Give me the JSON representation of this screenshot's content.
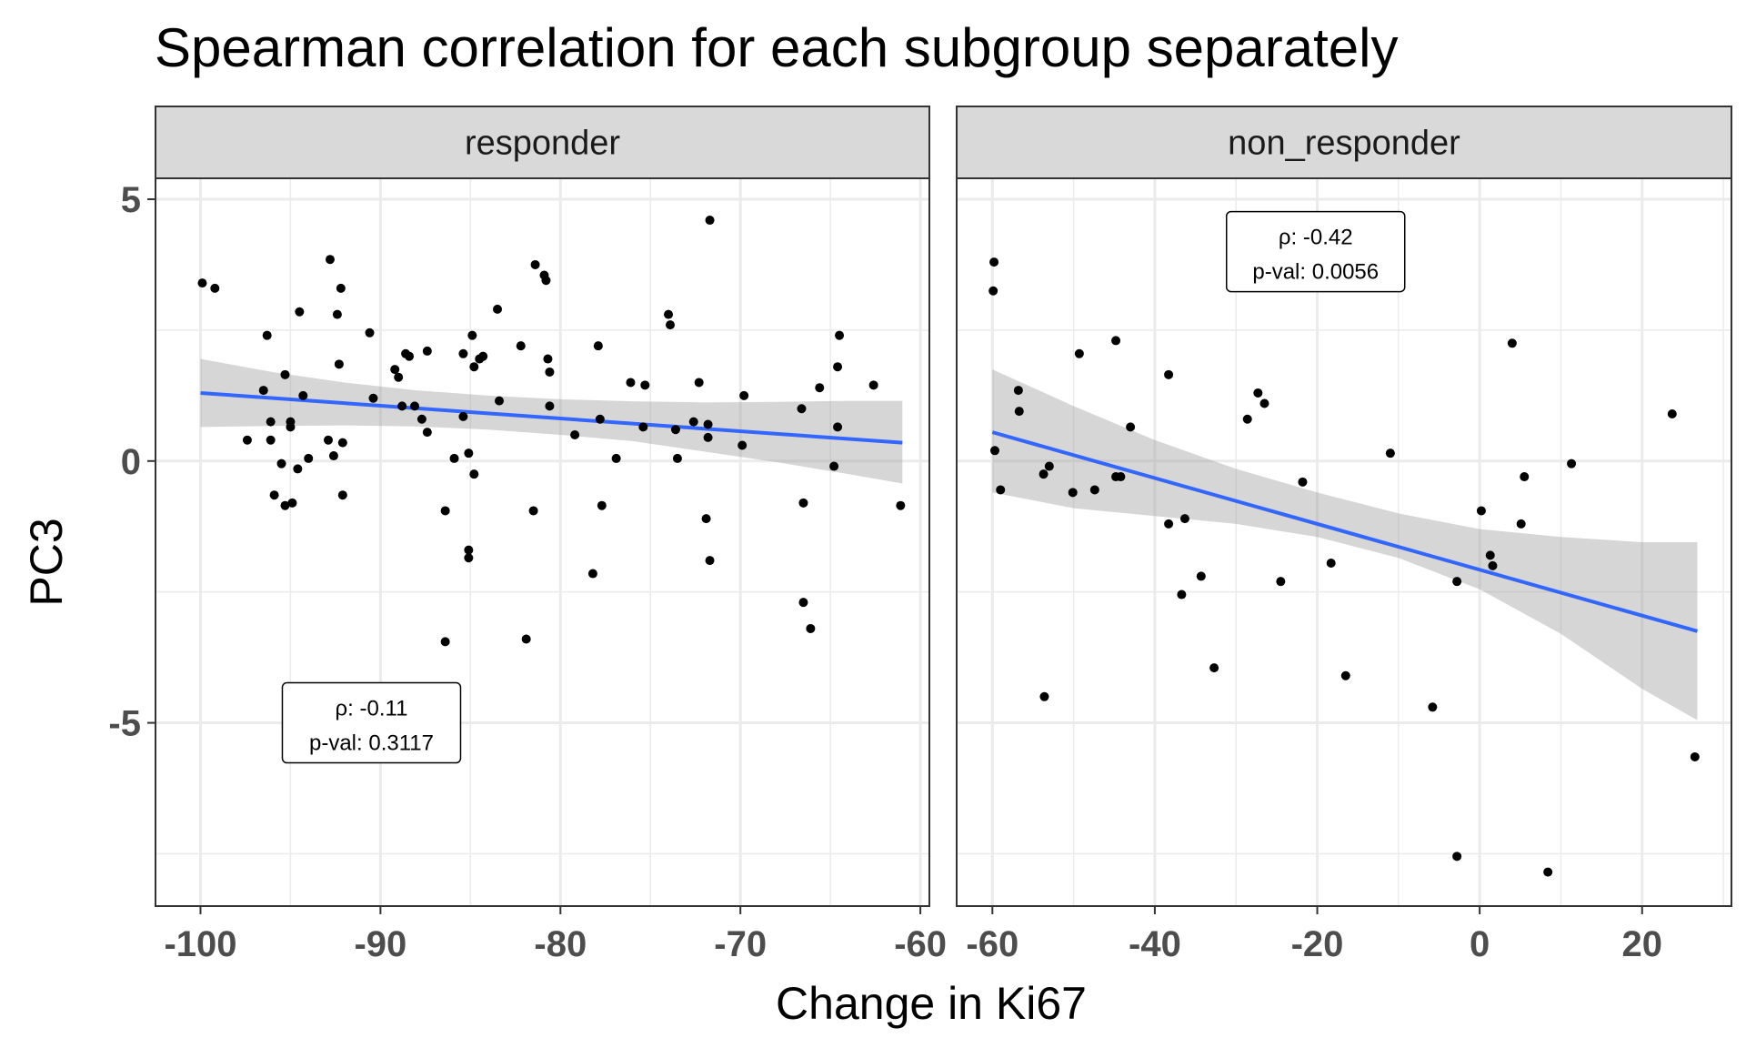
{
  "chart_data": {
    "type": "scatter",
    "title": "Spearman correlation for each subgroup separately",
    "xlabel": "Change in Ki67",
    "ylabel": "PC3",
    "ylim": [
      -8.5,
      5.4
    ],
    "y_ticks": [
      {
        "value": 5,
        "label": "5"
      },
      {
        "value": 0,
        "label": "0"
      },
      {
        "value": -5,
        "label": "-5"
      }
    ],
    "grid": true,
    "colors": {
      "points": "#000000",
      "fit_line": "#3366FF",
      "ribbon": "#999999",
      "strip_fill": "#D9D9D9",
      "grid": "#EBEBEB"
    },
    "panels": [
      {
        "strip_label": "responder",
        "xlim": [
          -102.5,
          -59.5
        ],
        "x_ticks": [
          {
            "value": -100,
            "label": "-100"
          },
          {
            "value": -90,
            "label": "-90"
          },
          {
            "value": -80,
            "label": "-80"
          },
          {
            "value": -70,
            "label": "-70"
          },
          {
            "value": -60,
            "label": "-60"
          }
        ],
        "annotation": {
          "rho": "ρ: -0.11",
          "pval": "p-val: 0.3117",
          "x": -90.5,
          "y": -5.0
        },
        "fit": {
          "x": [
            -100,
            -61
          ],
          "y": [
            1.3,
            0.35
          ]
        },
        "ribbon": {
          "x": [
            -100,
            -96,
            -92,
            -88,
            -84,
            -80,
            -76,
            -72,
            -68,
            -64,
            -61
          ],
          "upper": [
            1.95,
            1.7,
            1.5,
            1.35,
            1.25,
            1.18,
            1.14,
            1.12,
            1.13,
            1.15,
            1.15
          ],
          "lower": [
            0.65,
            0.67,
            0.68,
            0.66,
            0.6,
            0.5,
            0.38,
            0.18,
            -0.02,
            -0.25,
            -0.43
          ]
        },
        "points": [
          {
            "x": -99.9,
            "y": 3.4
          },
          {
            "x": -99.2,
            "y": 3.3
          },
          {
            "x": -97.4,
            "y": 0.4
          },
          {
            "x": -96.5,
            "y": 1.35
          },
          {
            "x": -96.3,
            "y": 2.4
          },
          {
            "x": -96.1,
            "y": 0.75
          },
          {
            "x": -96.1,
            "y": 0.4
          },
          {
            "x": -95.9,
            "y": -0.65
          },
          {
            "x": -95.5,
            "y": -0.05
          },
          {
            "x": -95.3,
            "y": 1.65
          },
          {
            "x": -95.3,
            "y": -0.85
          },
          {
            "x": -95.0,
            "y": 0.65
          },
          {
            "x": -95.0,
            "y": 0.75
          },
          {
            "x": -94.9,
            "y": -0.8
          },
          {
            "x": -94.6,
            "y": -0.15
          },
          {
            "x": -94.5,
            "y": 2.85
          },
          {
            "x": -94.3,
            "y": 1.25
          },
          {
            "x": -94.0,
            "y": 0.05
          },
          {
            "x": -92.9,
            "y": 0.4
          },
          {
            "x": -92.8,
            "y": 3.85
          },
          {
            "x": -92.6,
            "y": 0.1
          },
          {
            "x": -92.4,
            "y": 2.8
          },
          {
            "x": -92.3,
            "y": 1.85
          },
          {
            "x": -92.2,
            "y": 3.3
          },
          {
            "x": -92.1,
            "y": 0.35
          },
          {
            "x": -92.1,
            "y": -0.65
          },
          {
            "x": -90.6,
            "y": 2.45
          },
          {
            "x": -90.4,
            "y": 1.2
          },
          {
            "x": -89.2,
            "y": 1.75
          },
          {
            "x": -89.0,
            "y": 1.6
          },
          {
            "x": -88.8,
            "y": 1.05
          },
          {
            "x": -88.6,
            "y": 2.05
          },
          {
            "x": -88.4,
            "y": 2.0
          },
          {
            "x": -88.1,
            "y": 1.05
          },
          {
            "x": -87.7,
            "y": 0.8
          },
          {
            "x": -87.4,
            "y": 0.55
          },
          {
            "x": -87.4,
            "y": 2.1
          },
          {
            "x": -86.4,
            "y": -0.95
          },
          {
            "x": -86.4,
            "y": -3.45
          },
          {
            "x": -85.9,
            "y": 0.05
          },
          {
            "x": -85.4,
            "y": 2.05
          },
          {
            "x": -85.4,
            "y": 0.85
          },
          {
            "x": -85.1,
            "y": 0.15
          },
          {
            "x": -85.1,
            "y": -1.7
          },
          {
            "x": -85.1,
            "y": -1.85
          },
          {
            "x": -84.9,
            "y": 2.4
          },
          {
            "x": -84.8,
            "y": -0.25
          },
          {
            "x": -84.8,
            "y": 1.8
          },
          {
            "x": -84.5,
            "y": 1.95
          },
          {
            "x": -84.3,
            "y": 2.0
          },
          {
            "x": -83.5,
            "y": 2.9
          },
          {
            "x": -83.4,
            "y": 1.15
          },
          {
            "x": -82.2,
            "y": 2.2
          },
          {
            "x": -81.9,
            "y": -3.4
          },
          {
            "x": -81.5,
            "y": -0.95
          },
          {
            "x": -81.4,
            "y": 3.75
          },
          {
            "x": -80.9,
            "y": 3.55
          },
          {
            "x": -80.8,
            "y": 3.45
          },
          {
            "x": -80.7,
            "y": 1.95
          },
          {
            "x": -80.6,
            "y": 1.7
          },
          {
            "x": -80.6,
            "y": 1.05
          },
          {
            "x": -79.2,
            "y": 0.5
          },
          {
            "x": -78.2,
            "y": -2.15
          },
          {
            "x": -77.9,
            "y": 2.2
          },
          {
            "x": -77.8,
            "y": 0.8
          },
          {
            "x": -77.7,
            "y": -0.85
          },
          {
            "x": -76.9,
            "y": 0.05
          },
          {
            "x": -76.1,
            "y": 1.5
          },
          {
            "x": -75.4,
            "y": 0.65
          },
          {
            "x": -75.3,
            "y": 1.45
          },
          {
            "x": -74.0,
            "y": 2.8
          },
          {
            "x": -73.9,
            "y": 2.6
          },
          {
            "x": -73.6,
            "y": 0.6
          },
          {
            "x": -73.5,
            "y": 0.05
          },
          {
            "x": -72.6,
            "y": 0.75
          },
          {
            "x": -72.3,
            "y": 1.5
          },
          {
            "x": -71.9,
            "y": -1.1
          },
          {
            "x": -71.8,
            "y": 0.45
          },
          {
            "x": -71.8,
            "y": 0.7
          },
          {
            "x": -71.7,
            "y": 4.6
          },
          {
            "x": -71.7,
            "y": -1.9
          },
          {
            "x": -69.9,
            "y": 0.3
          },
          {
            "x": -69.8,
            "y": 1.25
          },
          {
            "x": -66.6,
            "y": 1.0
          },
          {
            "x": -66.5,
            "y": -0.8
          },
          {
            "x": -66.5,
            "y": -2.7
          },
          {
            "x": -66.1,
            "y": -3.2
          },
          {
            "x": -65.6,
            "y": 1.4
          },
          {
            "x": -64.8,
            "y": -0.1
          },
          {
            "x": -64.6,
            "y": 0.65
          },
          {
            "x": -64.6,
            "y": 1.8
          },
          {
            "x": -64.5,
            "y": 2.4
          },
          {
            "x": -62.6,
            "y": 1.45
          },
          {
            "x": -61.1,
            "y": -0.85
          }
        ]
      },
      {
        "strip_label": "non_responder",
        "xlim": [
          -64.4,
          31.0
        ],
        "x_ticks": [
          {
            "value": -60,
            "label": "-60"
          },
          {
            "value": -40,
            "label": "-40"
          },
          {
            "value": -20,
            "label": "-20"
          },
          {
            "value": 0,
            "label": "0"
          },
          {
            "value": 20,
            "label": "20"
          }
        ],
        "annotation": {
          "rho": "ρ: -0.42",
          "pval": "p-val: 0.0056",
          "x": -20.2,
          "y": 4.0
        },
        "fit": {
          "x": [
            -60,
            26.8
          ],
          "y": [
            0.55,
            -3.25
          ]
        },
        "ribbon": {
          "x": [
            -60,
            -50,
            -40,
            -30,
            -20,
            -10,
            0,
            10,
            20,
            26.8
          ],
          "upper": [
            1.75,
            1.05,
            0.4,
            -0.15,
            -0.6,
            -1.0,
            -1.3,
            -1.45,
            -1.55,
            -1.55
          ],
          "lower": [
            -0.6,
            -0.9,
            -1.05,
            -1.2,
            -1.45,
            -1.85,
            -2.45,
            -3.3,
            -4.35,
            -4.95
          ]
        },
        "points": [
          {
            "x": -59.8,
            "y": 3.8
          },
          {
            "x": -59.9,
            "y": 3.25
          },
          {
            "x": -59.7,
            "y": 0.2
          },
          {
            "x": -59.0,
            "y": -0.55
          },
          {
            "x": -56.8,
            "y": 1.35
          },
          {
            "x": -56.7,
            "y": 0.95
          },
          {
            "x": -53.7,
            "y": -0.25
          },
          {
            "x": -53.6,
            "y": -4.5
          },
          {
            "x": -53.0,
            "y": -0.1
          },
          {
            "x": -50.1,
            "y": -0.6
          },
          {
            "x": -49.3,
            "y": 2.05
          },
          {
            "x": -47.4,
            "y": -0.55
          },
          {
            "x": -44.8,
            "y": -0.3
          },
          {
            "x": -44.8,
            "y": 2.3
          },
          {
            "x": -44.2,
            "y": -0.3
          },
          {
            "x": -43.0,
            "y": 0.65
          },
          {
            "x": -38.3,
            "y": 1.65
          },
          {
            "x": -38.3,
            "y": -1.2
          },
          {
            "x": -36.7,
            "y": -2.55
          },
          {
            "x": -36.3,
            "y": -1.1
          },
          {
            "x": -34.3,
            "y": -2.2
          },
          {
            "x": -32.7,
            "y": -3.95
          },
          {
            "x": -28.6,
            "y": 0.8
          },
          {
            "x": -27.3,
            "y": 1.3
          },
          {
            "x": -26.5,
            "y": 1.1
          },
          {
            "x": -24.5,
            "y": -2.3
          },
          {
            "x": -21.8,
            "y": -0.4
          },
          {
            "x": -18.3,
            "y": -1.95
          },
          {
            "x": -16.5,
            "y": -4.1
          },
          {
            "x": -11.0,
            "y": 0.15
          },
          {
            "x": -5.8,
            "y": -4.7
          },
          {
            "x": -2.8,
            "y": -2.3
          },
          {
            "x": -2.8,
            "y": -7.55
          },
          {
            "x": 0.2,
            "y": -0.95
          },
          {
            "x": 1.3,
            "y": -1.8
          },
          {
            "x": 1.6,
            "y": -2.0
          },
          {
            "x": 4.0,
            "y": 2.25
          },
          {
            "x": 5.1,
            "y": -1.2
          },
          {
            "x": 5.5,
            "y": -0.3
          },
          {
            "x": 8.4,
            "y": -7.85
          },
          {
            "x": 11.3,
            "y": -0.05
          },
          {
            "x": 23.7,
            "y": 0.9
          },
          {
            "x": 26.5,
            "y": -5.65
          }
        ]
      }
    ]
  }
}
